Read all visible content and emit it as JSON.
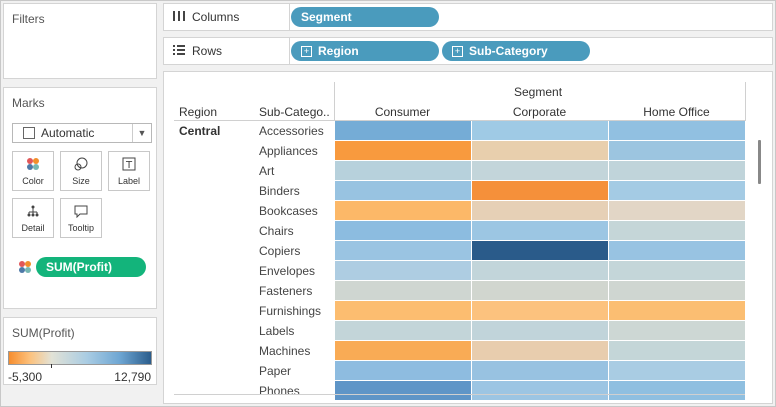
{
  "sidebar": {
    "filters_title": "Filters",
    "marks_title": "Marks",
    "mark_type": "Automatic",
    "mark_buttons": [
      {
        "label": "Color",
        "icon": "color-dots-icon"
      },
      {
        "label": "Size",
        "icon": "size-icon"
      },
      {
        "label": "Label",
        "icon": "label-icon"
      },
      {
        "label": "Detail",
        "icon": "detail-icon"
      },
      {
        "label": "Tooltip",
        "icon": "tooltip-icon"
      }
    ],
    "color_pill": "SUM(Profit)",
    "legend_title": "SUM(Profit)",
    "legend_min": "-5,300",
    "legend_max": "12,790"
  },
  "shelves": {
    "columns_label": "Columns",
    "rows_label": "Rows",
    "columns_pills": [
      "Segment"
    ],
    "rows_pills": [
      "Region",
      "Sub-Category"
    ]
  },
  "view": {
    "segment_header": "Segment",
    "region_header": "Region",
    "subcat_header": "Sub-Catego..",
    "columns": [
      "Consumer",
      "Corporate",
      "Home Office"
    ],
    "region": "Central",
    "rows": [
      {
        "label": "Accessories",
        "colors": [
          "#75acd6",
          "#9fcae5",
          "#91c0e1"
        ]
      },
      {
        "label": "Appliances",
        "colors": [
          "#f89a3e",
          "#e8cfad",
          "#9cc5e0"
        ]
      },
      {
        "label": "Art",
        "colors": [
          "#b7d1dc",
          "#c3d5da",
          "#c0d4da"
        ]
      },
      {
        "label": "Binders",
        "colors": [
          "#98c3e1",
          "#f5903a",
          "#a4cbe4"
        ]
      },
      {
        "label": "Bookcases",
        "colors": [
          "#fcb868",
          "#e6d0b6",
          "#e2d6c6"
        ]
      },
      {
        "label": "Chairs",
        "colors": [
          "#8cbce0",
          "#9cc6e3",
          "#c5d6d8"
        ]
      },
      {
        "label": "Copiers",
        "colors": [
          "#9ac4e2",
          "#2a5b8a",
          "#98c3e2"
        ]
      },
      {
        "label": "Envelopes",
        "colors": [
          "#aecde2",
          "#c2d5da",
          "#c4d6d9"
        ]
      },
      {
        "label": "Fasteners",
        "colors": [
          "#cfd6d1",
          "#d1d6cf",
          "#cfd6d1"
        ]
      },
      {
        "label": "Furnishings",
        "colors": [
          "#fcbd70",
          "#fcc27e",
          "#fbbe72"
        ]
      },
      {
        "label": "Labels",
        "colors": [
          "#c3d5d9",
          "#c1d4da",
          "#cdd7d4"
        ]
      },
      {
        "label": "Machines",
        "colors": [
          "#f9ab55",
          "#e8cdae",
          "#c4d6d8"
        ]
      },
      {
        "label": "Paper",
        "colors": [
          "#8ebce0",
          "#98c2e1",
          "#a9cce3"
        ]
      },
      {
        "label": "Phones",
        "colors": [
          "#5f95c7",
          "#9cc5e3",
          "#8fbfe0"
        ]
      }
    ]
  },
  "colors": {
    "pill_blue": "#4a9bbd",
    "pill_green": "#13b47b",
    "legend_low": "#f68d2e",
    "legend_mid": "#e2e2d6",
    "legend_high": "#2b5d8c"
  }
}
